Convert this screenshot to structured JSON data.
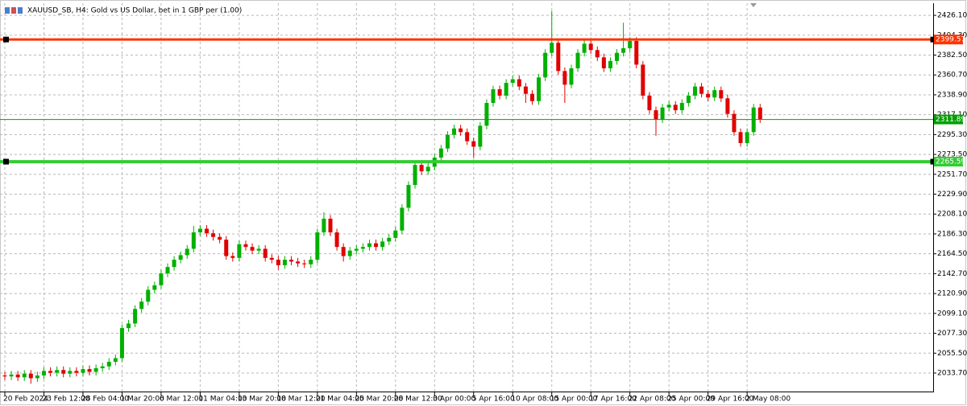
{
  "chart_data": {
    "type": "candlestick",
    "title": "XAUUSD_SB, H4:  Gold vs US Dollar, bet in 1 GBP per (1.00)",
    "categories": [
      "20 Feb 2024",
      null,
      null,
      null,
      null,
      null,
      "23 Feb 12:00",
      null,
      null,
      null,
      null,
      null,
      "28 Feb 04:00",
      null,
      null,
      null,
      null,
      null,
      "1 Mar 20:00",
      null,
      null,
      null,
      null,
      null,
      "6 Mar 12:00",
      null,
      null,
      null,
      null,
      null,
      "11 Mar 04:00",
      null,
      null,
      null,
      null,
      null,
      "13 Mar 20:00",
      null,
      null,
      null,
      null,
      null,
      "18 Mar 12:00",
      null,
      null,
      null,
      null,
      null,
      "21 Mar 04:00",
      null,
      null,
      null,
      null,
      null,
      "25 Mar 20:00",
      null,
      null,
      null,
      null,
      null,
      "28 Mar 12:00",
      null,
      null,
      null,
      null,
      null,
      "3 Apr 00:00",
      null,
      null,
      null,
      null,
      null,
      "5 Apr 16:00",
      null,
      null,
      null,
      null,
      null,
      "10 Apr 08:00",
      null,
      null,
      null,
      null,
      null,
      "15 Apr 00:00",
      null,
      null,
      null,
      null,
      null,
      "17 Apr 16:00",
      null,
      null,
      null,
      null,
      null,
      "22 Apr 08:00",
      null,
      null,
      null,
      null,
      null,
      "25 Apr 00:00",
      null,
      null,
      null,
      null,
      null,
      "29 Apr 16:00",
      null,
      null,
      null,
      null,
      null,
      "2 May 08:00",
      null,
      null
    ],
    "open": [
      2031,
      2030,
      2032,
      2029,
      2033,
      2028,
      2031,
      2036,
      2034,
      2037,
      2033,
      2036,
      2034,
      2038,
      2035,
      2039,
      2041,
      2046,
      2050,
      2083,
      2088,
      2104,
      2112,
      2125,
      2130,
      2143,
      2150,
      2158,
      2163,
      2170,
      2188,
      2192,
      2187,
      2183,
      2180,
      2162,
      2160,
      2175,
      2172,
      2168,
      2170,
      2160,
      2158,
      2152,
      2158,
      2156,
      2154,
      2153,
      2158,
      2188,
      2203,
      2188,
      2172,
      2162,
      2168,
      2170,
      2172,
      2176,
      2172,
      2178,
      2182,
      2190,
      2215,
      2240,
      2262,
      2255,
      2260,
      2270,
      2280,
      2295,
      2302,
      2298,
      2288,
      2282,
      2305,
      2330,
      2345,
      2338,
      2352,
      2356,
      2348,
      2340,
      2332,
      2358,
      2385,
      2396,
      2365,
      2350,
      2368,
      2385,
      2395,
      2388,
      2380,
      2368,
      2376,
      2385,
      2390,
      2398,
      2372,
      2338,
      2322,
      2312,
      2325,
      2328,
      2322,
      2330,
      2338,
      2348,
      2340,
      2336,
      2344,
      2335,
      2318,
      2298,
      2286,
      2298,
      2325
    ],
    "high": [
      2035,
      2036,
      2036,
      2037,
      2037,
      2035,
      2040,
      2040,
      2041,
      2041,
      2040,
      2040,
      2042,
      2042,
      2043,
      2045,
      2050,
      2054,
      2087,
      2092,
      2108,
      2116,
      2129,
      2134,
      2147,
      2154,
      2162,
      2167,
      2174,
      2195,
      2196,
      2196,
      2191,
      2187,
      2184,
      2166,
      2179,
      2179,
      2176,
      2174,
      2174,
      2164,
      2162,
      2162,
      2162,
      2160,
      2158,
      2162,
      2192,
      2210,
      2207,
      2192,
      2176,
      2172,
      2174,
      2176,
      2180,
      2180,
      2182,
      2186,
      2194,
      2219,
      2244,
      2266,
      2266,
      2264,
      2274,
      2284,
      2299,
      2306,
      2306,
      2302,
      2292,
      2309,
      2334,
      2349,
      2349,
      2356,
      2360,
      2360,
      2352,
      2344,
      2362,
      2389,
      2431,
      2400,
      2369,
      2372,
      2389,
      2399,
      2399,
      2392,
      2384,
      2380,
      2389,
      2418,
      2402,
      2402,
      2376,
      2342,
      2326,
      2329,
      2332,
      2332,
      2334,
      2342,
      2352,
      2352,
      2344,
      2348,
      2348,
      2339,
      2322,
      2302,
      2302,
      2329,
      2329
    ],
    "low": [
      2026,
      2026,
      2025,
      2025,
      2022,
      2024,
      2027,
      2030,
      2030,
      2029,
      2029,
      2030,
      2030,
      2031,
      2031,
      2035,
      2037,
      2042,
      2046,
      2079,
      2084,
      2100,
      2108,
      2121,
      2126,
      2139,
      2146,
      2154,
      2159,
      2166,
      2184,
      2183,
      2179,
      2176,
      2158,
      2156,
      2156,
      2168,
      2164,
      2164,
      2156,
      2154,
      2147,
      2148,
      2152,
      2150,
      2149,
      2149,
      2154,
      2184,
      2184,
      2168,
      2156,
      2158,
      2164,
      2166,
      2168,
      2168,
      2168,
      2174,
      2178,
      2186,
      2211,
      2236,
      2251,
      2251,
      2256,
      2266,
      2276,
      2291,
      2294,
      2284,
      2270,
      2278,
      2301,
      2326,
      2334,
      2334,
      2348,
      2344,
      2330,
      2328,
      2328,
      2354,
      2381,
      2361,
      2330,
      2346,
      2364,
      2381,
      2384,
      2376,
      2364,
      2364,
      2372,
      2381,
      2386,
      2368,
      2334,
      2318,
      2294,
      2308,
      2321,
      2318,
      2318,
      2326,
      2334,
      2336,
      2332,
      2332,
      2331,
      2314,
      2294,
      2282,
      2282,
      2294,
      2308
    ],
    "close": [
      2030,
      2032,
      2029,
      2033,
      2028,
      2031,
      2036,
      2034,
      2037,
      2033,
      2036,
      2034,
      2038,
      2035,
      2039,
      2041,
      2046,
      2050,
      2083,
      2088,
      2104,
      2112,
      2125,
      2130,
      2143,
      2150,
      2158,
      2163,
      2170,
      2188,
      2192,
      2187,
      2183,
      2180,
      2162,
      2160,
      2175,
      2172,
      2168,
      2170,
      2160,
      2158,
      2152,
      2158,
      2156,
      2154,
      2153,
      2158,
      2188,
      2203,
      2188,
      2172,
      2162,
      2168,
      2170,
      2172,
      2176,
      2172,
      2178,
      2182,
      2190,
      2215,
      2240,
      2262,
      2255,
      2260,
      2270,
      2280,
      2295,
      2302,
      2298,
      2288,
      2282,
      2305,
      2330,
      2345,
      2338,
      2352,
      2356,
      2348,
      2340,
      2332,
      2358,
      2385,
      2396,
      2365,
      2350,
      2368,
      2385,
      2395,
      2388,
      2380,
      2368,
      2376,
      2385,
      2390,
      2398,
      2372,
      2338,
      2322,
      2312,
      2325,
      2328,
      2322,
      2330,
      2338,
      2348,
      2340,
      2336,
      2344,
      2335,
      2318,
      2298,
      2286,
      2298,
      2325,
      2312
    ],
    "up_color": "#00b000",
    "down_color": "#e00000",
    "ylim": [
      2013.4,
      2439.4
    ],
    "yticks": [
      {
        "value": 2426.1,
        "label": "2426.10"
      },
      {
        "value": 2404.3,
        "label": "2404.30"
      },
      {
        "value": 2382.5,
        "label": "2382.50"
      },
      {
        "value": 2360.7,
        "label": "2360.70"
      },
      {
        "value": 2338.9,
        "label": "2338.90"
      },
      {
        "value": 2317.1,
        "label": "2317.10"
      },
      {
        "value": 2295.3,
        "label": "2295.30"
      },
      {
        "value": 2273.5,
        "label": "2273.50"
      },
      {
        "value": 2251.7,
        "label": "2251.70"
      },
      {
        "value": 2229.9,
        "label": "2229.90"
      },
      {
        "value": 2208.1,
        "label": "2208.10"
      },
      {
        "value": 2186.3,
        "label": "2186.30"
      },
      {
        "value": 2164.5,
        "label": "2164.50"
      },
      {
        "value": 2142.7,
        "label": "2142.70"
      },
      {
        "value": 2120.9,
        "label": "2120.90"
      },
      {
        "value": 2099.1,
        "label": "2099.10"
      },
      {
        "value": 2077.3,
        "label": "2077.30"
      },
      {
        "value": 2055.5,
        "label": "2055.50"
      },
      {
        "value": 2033.7,
        "label": "2033.70"
      }
    ],
    "grid": true,
    "lines": [
      {
        "value": 2399.57,
        "color": "#ff3300",
        "width": 3
      },
      {
        "value": 2311.89,
        "color": "#00a000",
        "width": 1
      },
      {
        "value": 2265.59,
        "color": "#33cc33",
        "width": 4
      }
    ]
  }
}
